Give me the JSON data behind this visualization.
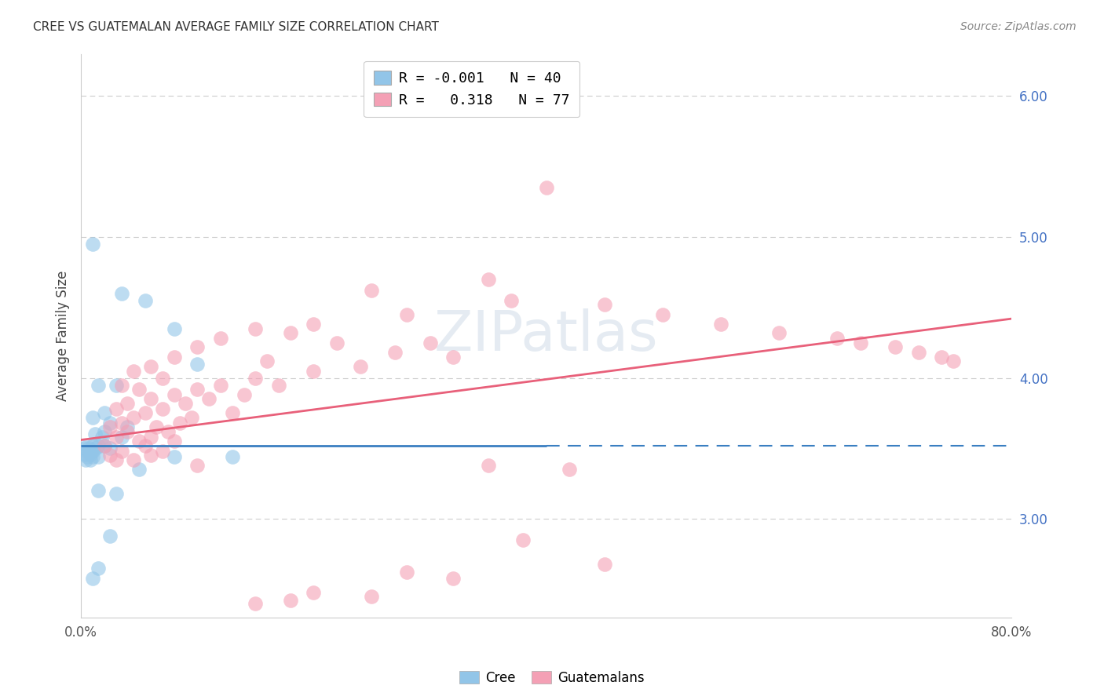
{
  "title": "CREE VS GUATEMALAN AVERAGE FAMILY SIZE CORRELATION CHART",
  "source": "Source: ZipAtlas.com",
  "ylabel": "Average Family Size",
  "right_yticks": [
    3.0,
    4.0,
    5.0,
    6.0
  ],
  "legend_cree": "R = -0.001   N = 40",
  "legend_guat": "R =   0.318   N = 77",
  "cree_color": "#92C5E8",
  "guatemalan_color": "#F4A0B5",
  "cree_line_color": "#3A7FC1",
  "guatemalan_line_color": "#E8607A",
  "watermark": "ZIPatlas",
  "xlim": [
    0,
    80
  ],
  "ylim": [
    2.3,
    6.3
  ],
  "cree_points": [
    [
      1.0,
      4.95
    ],
    [
      3.5,
      4.6
    ],
    [
      5.5,
      4.55
    ],
    [
      8.0,
      4.35
    ],
    [
      10.0,
      4.1
    ],
    [
      1.5,
      3.95
    ],
    [
      3.0,
      3.95
    ],
    [
      2.0,
      3.75
    ],
    [
      1.0,
      3.72
    ],
    [
      2.5,
      3.68
    ],
    [
      4.0,
      3.65
    ],
    [
      2.0,
      3.62
    ],
    [
      1.2,
      3.6
    ],
    [
      1.8,
      3.58
    ],
    [
      3.5,
      3.58
    ],
    [
      0.5,
      3.52
    ],
    [
      1.0,
      3.52
    ],
    [
      1.5,
      3.52
    ],
    [
      2.0,
      3.52
    ],
    [
      0.3,
      3.5
    ],
    [
      0.7,
      3.5
    ],
    [
      1.3,
      3.5
    ],
    [
      2.5,
      3.5
    ],
    [
      0.5,
      3.48
    ],
    [
      1.0,
      3.48
    ],
    [
      0.3,
      3.46
    ],
    [
      0.8,
      3.46
    ],
    [
      0.5,
      3.44
    ],
    [
      1.0,
      3.44
    ],
    [
      1.5,
      3.44
    ],
    [
      8.0,
      3.44
    ],
    [
      13.0,
      3.44
    ],
    [
      0.4,
      3.42
    ],
    [
      0.8,
      3.42
    ],
    [
      5.0,
      3.35
    ],
    [
      1.5,
      3.2
    ],
    [
      3.0,
      3.18
    ],
    [
      2.5,
      2.88
    ],
    [
      1.5,
      2.65
    ],
    [
      1.0,
      2.58
    ]
  ],
  "guatemalan_points": [
    [
      40.0,
      5.35
    ],
    [
      35.0,
      4.7
    ],
    [
      25.0,
      4.62
    ],
    [
      37.0,
      4.55
    ],
    [
      45.0,
      4.52
    ],
    [
      28.0,
      4.45
    ],
    [
      50.0,
      4.45
    ],
    [
      20.0,
      4.38
    ],
    [
      55.0,
      4.38
    ],
    [
      15.0,
      4.35
    ],
    [
      18.0,
      4.32
    ],
    [
      60.0,
      4.32
    ],
    [
      12.0,
      4.28
    ],
    [
      65.0,
      4.28
    ],
    [
      22.0,
      4.25
    ],
    [
      30.0,
      4.25
    ],
    [
      67.0,
      4.25
    ],
    [
      10.0,
      4.22
    ],
    [
      70.0,
      4.22
    ],
    [
      27.0,
      4.18
    ],
    [
      72.0,
      4.18
    ],
    [
      8.0,
      4.15
    ],
    [
      32.0,
      4.15
    ],
    [
      74.0,
      4.15
    ],
    [
      16.0,
      4.12
    ],
    [
      75.0,
      4.12
    ],
    [
      6.0,
      4.08
    ],
    [
      24.0,
      4.08
    ],
    [
      4.5,
      4.05
    ],
    [
      20.0,
      4.05
    ],
    [
      7.0,
      4.0
    ],
    [
      15.0,
      4.0
    ],
    [
      3.5,
      3.95
    ],
    [
      12.0,
      3.95
    ],
    [
      17.0,
      3.95
    ],
    [
      5.0,
      3.92
    ],
    [
      10.0,
      3.92
    ],
    [
      8.0,
      3.88
    ],
    [
      14.0,
      3.88
    ],
    [
      6.0,
      3.85
    ],
    [
      11.0,
      3.85
    ],
    [
      4.0,
      3.82
    ],
    [
      9.0,
      3.82
    ],
    [
      3.0,
      3.78
    ],
    [
      7.0,
      3.78
    ],
    [
      5.5,
      3.75
    ],
    [
      13.0,
      3.75
    ],
    [
      4.5,
      3.72
    ],
    [
      9.5,
      3.72
    ],
    [
      3.5,
      3.68
    ],
    [
      8.5,
      3.68
    ],
    [
      2.5,
      3.65
    ],
    [
      6.5,
      3.65
    ],
    [
      4.0,
      3.62
    ],
    [
      7.5,
      3.62
    ],
    [
      3.0,
      3.58
    ],
    [
      6.0,
      3.58
    ],
    [
      5.0,
      3.55
    ],
    [
      8.0,
      3.55
    ],
    [
      2.0,
      3.52
    ],
    [
      5.5,
      3.52
    ],
    [
      3.5,
      3.48
    ],
    [
      7.0,
      3.48
    ],
    [
      2.5,
      3.45
    ],
    [
      6.0,
      3.45
    ],
    [
      3.0,
      3.42
    ],
    [
      4.5,
      3.42
    ],
    [
      35.0,
      3.38
    ],
    [
      42.0,
      3.35
    ],
    [
      38.0,
      2.85
    ],
    [
      45.0,
      2.68
    ],
    [
      28.0,
      2.62
    ],
    [
      32.0,
      2.58
    ],
    [
      20.0,
      2.48
    ],
    [
      25.0,
      2.45
    ],
    [
      18.0,
      2.42
    ],
    [
      15.0,
      2.4
    ],
    [
      10.0,
      3.38
    ]
  ],
  "cree_line": {
    "x0": 0,
    "x1": 40,
    "y0": 3.52,
    "y1": 3.52,
    "dash_x0": 40,
    "dash_x1": 80,
    "dash_y0": 3.52,
    "dash_y1": 3.52
  },
  "guat_line": {
    "x0": 0,
    "x1": 80,
    "y0": 3.56,
    "y1": 4.42
  }
}
